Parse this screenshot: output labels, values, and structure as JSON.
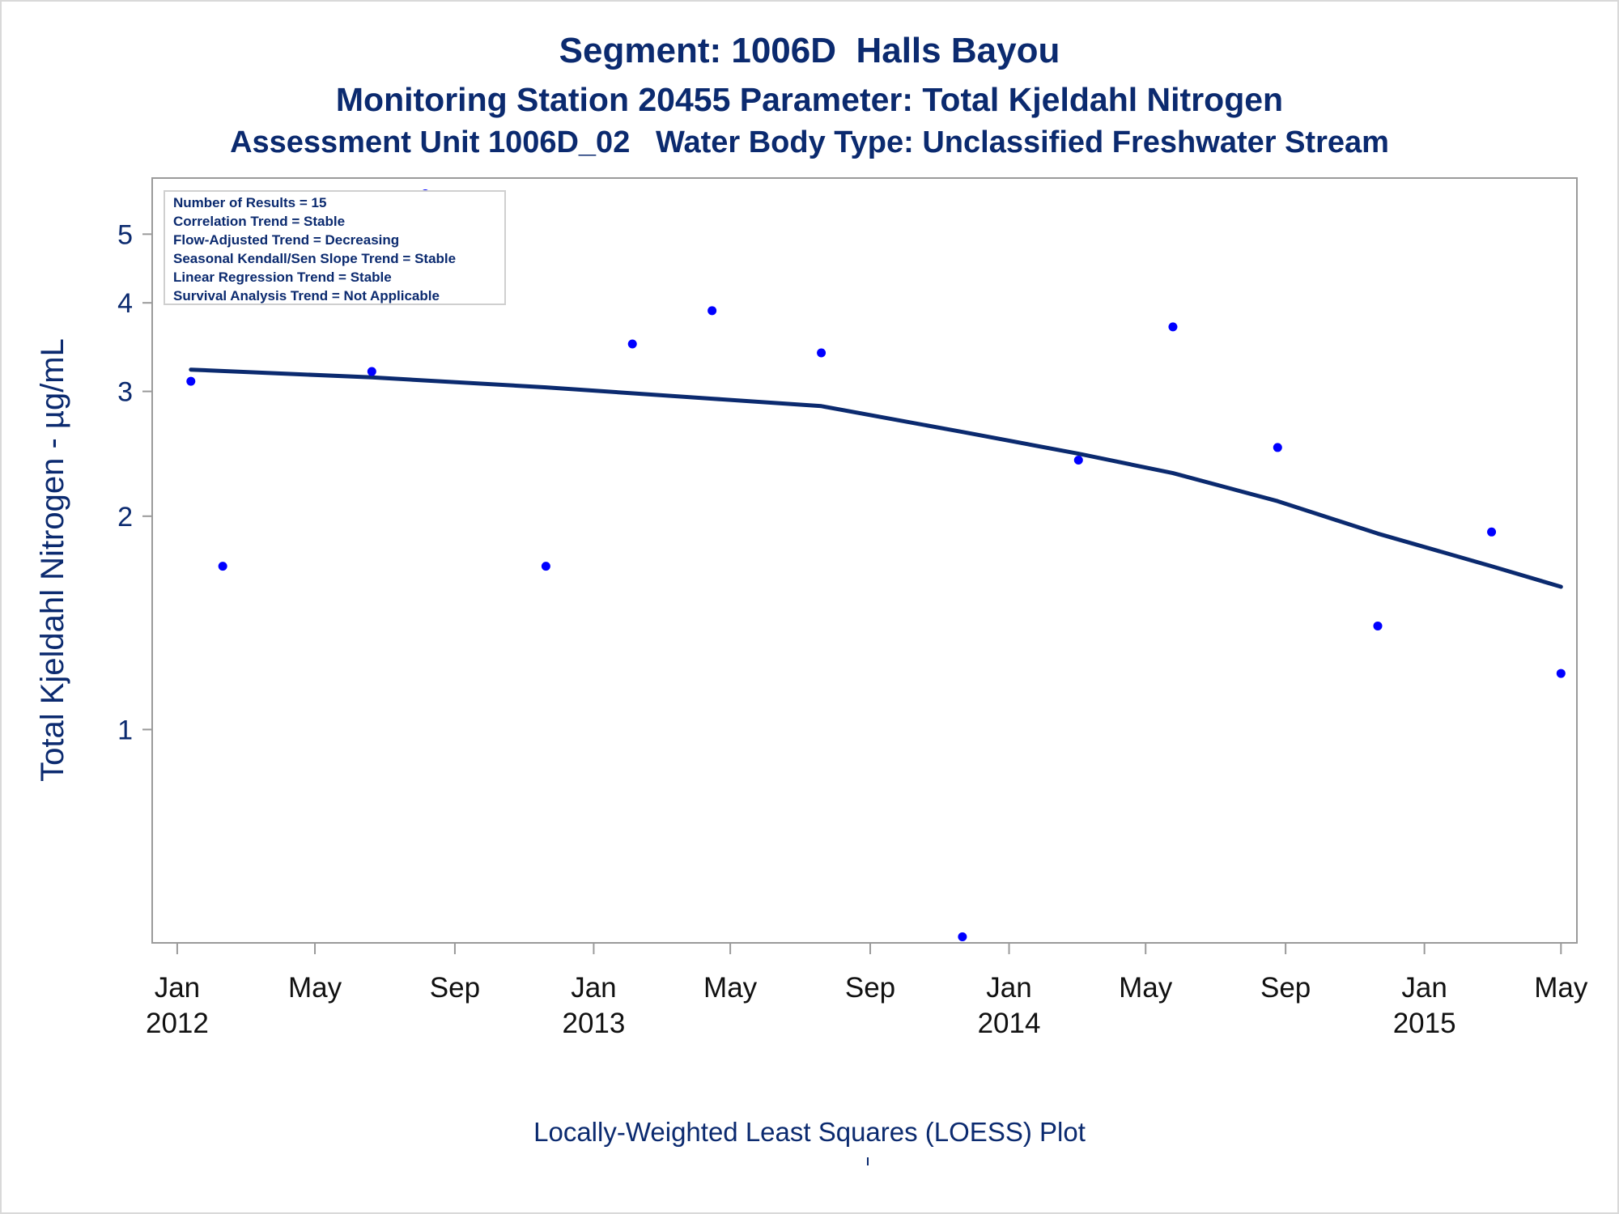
{
  "chart_data": {
    "type": "scatter",
    "title": "Segment: 1006D  Halls Bayou",
    "subtitle": "Monitoring Station 20455 Parameter: Total Kjeldahl Nitrogen",
    "subtitle2": "Assessment Unit 1006D_02   Water Body Type: Unclassified Freshwater Stream",
    "xlabel": "",
    "ylabel": "Total Kjeldahl Nitrogen -  µg/mL",
    "caption": "Locally-Weighted Least Squares (LOESS) Plot",
    "footnote_mark": "'",
    "y_scale": "log",
    "ylim": [
      0.5,
      6.0
    ],
    "xlim": [
      "2011-12-10",
      "2015-05-15"
    ],
    "y_ticks": [
      1,
      2,
      3,
      4,
      5
    ],
    "y_tick_labels": [
      "1",
      "2",
      "3",
      "4",
      "5"
    ],
    "x_ticks": [
      "2012-01-01",
      "2012-05-01",
      "2012-09-01",
      "2013-01-01",
      "2013-05-01",
      "2013-09-01",
      "2014-01-01",
      "2014-05-01",
      "2014-09-01",
      "2015-01-01",
      "2015-05-01"
    ],
    "x_tick_labels": [
      [
        "Jan",
        "2012"
      ],
      [
        "May",
        ""
      ],
      [
        "Sep",
        ""
      ],
      [
        "Jan",
        "2013"
      ],
      [
        "May",
        ""
      ],
      [
        "Sep",
        ""
      ],
      [
        "Jan",
        "2014"
      ],
      [
        "May",
        ""
      ],
      [
        "Sep",
        ""
      ],
      [
        "Jan",
        "2015"
      ],
      [
        "May",
        ""
      ]
    ],
    "grid": false,
    "legend_position": "top-left",
    "inset_lines": [
      "Number of Results = 15",
      "Correlation Trend = Stable",
      "Flow-Adjusted Trend = Decreasing",
      "Seasonal Kendall/Sen Slope Trend = Stable",
      "Linear Regression Trend = Stable",
      "Survival Analysis Trend = Not Applicable"
    ],
    "series": [
      {
        "values": [
          {
            "x": "2012-01-13",
            "y": 3.1
          },
          {
            "x": "2012-02-10",
            "y": 1.7
          },
          {
            "x": "2012-06-20",
            "y": 3.2
          },
          {
            "x": "2012-08-06",
            "y": 5.7
          },
          {
            "x": "2012-11-20",
            "y": 1.7
          },
          {
            "x": "2013-02-04",
            "y": 3.5
          },
          {
            "x": "2013-04-15",
            "y": 3.9
          },
          {
            "x": "2013-07-20",
            "y": 3.4
          },
          {
            "x": "2013-11-21",
            "y": 0.51
          },
          {
            "x": "2014-03-03",
            "y": 2.4
          },
          {
            "x": "2014-05-25",
            "y": 3.7
          },
          {
            "x": "2014-08-25",
            "y": 2.5
          },
          {
            "x": "2014-11-21",
            "y": 1.4
          },
          {
            "x": "2015-03-01",
            "y": 1.9
          },
          {
            "x": "2015-05-01",
            "y": 1.2
          }
        ]
      },
      {
        "type": "line",
        "values": [
          {
            "x": "2012-01-13",
            "y": 3.22
          },
          {
            "x": "2012-06-20",
            "y": 3.14
          },
          {
            "x": "2012-11-20",
            "y": 3.04
          },
          {
            "x": "2013-04-15",
            "y": 2.93
          },
          {
            "x": "2013-07-20",
            "y": 2.86
          },
          {
            "x": "2013-11-21",
            "y": 2.63
          },
          {
            "x": "2014-03-03",
            "y": 2.45
          },
          {
            "x": "2014-05-25",
            "y": 2.3
          },
          {
            "x": "2014-08-25",
            "y": 2.1
          },
          {
            "x": "2014-11-21",
            "y": 1.89
          },
          {
            "x": "2015-03-01",
            "y": 1.7
          },
          {
            "x": "2015-05-01",
            "y": 1.59
          }
        ]
      }
    ]
  },
  "colors": {
    "text": "#0b2a6f",
    "points": "#0000ff",
    "loess_line": "#0b2a6f",
    "axes": "#9a9a9a"
  }
}
